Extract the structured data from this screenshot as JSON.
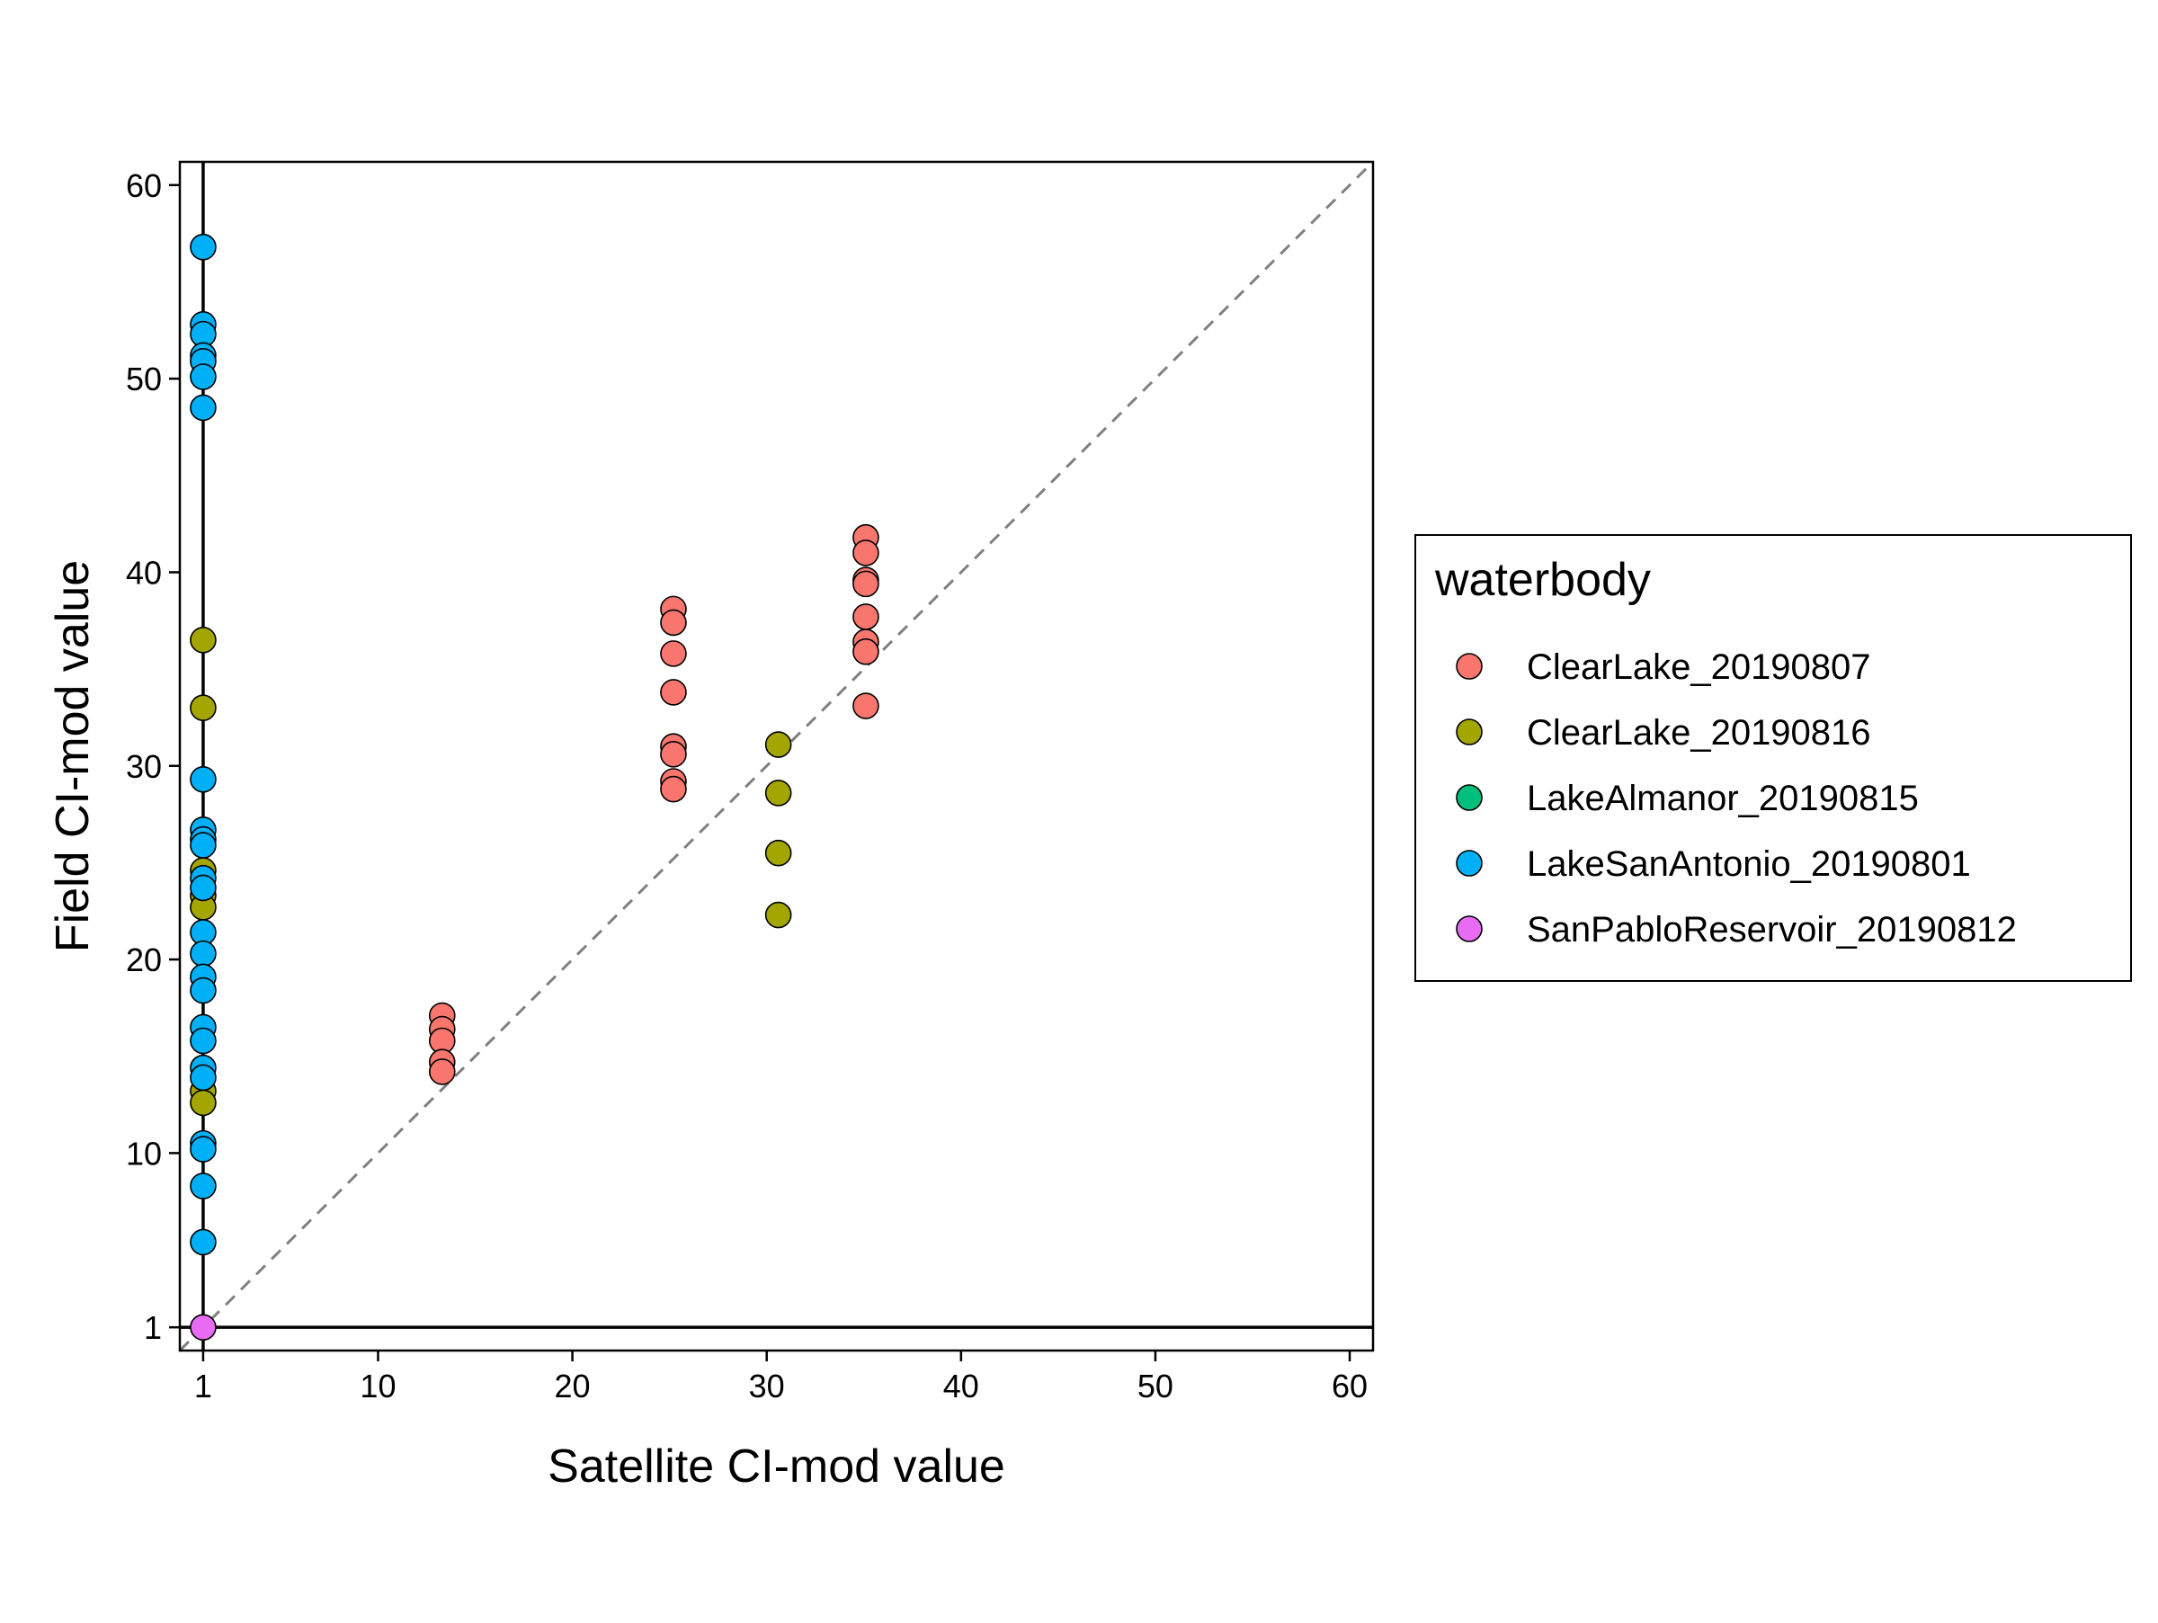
{
  "chart_data": {
    "type": "scatter",
    "title": "",
    "xlabel": "Satellite CI-mod value",
    "ylabel": "Field CI-mod value",
    "xlim": [
      -0.2,
      61.2
    ],
    "ylim": [
      -0.2,
      61.2
    ],
    "xticks": [
      1,
      10,
      20,
      30,
      40,
      50,
      60
    ],
    "yticks": [
      1,
      10,
      20,
      30,
      40,
      50,
      60
    ],
    "grid": false,
    "reference_lines": [
      {
        "type": "diagonal",
        "label": "1:1",
        "color": "#808080",
        "style": "dashed"
      },
      {
        "type": "vertical",
        "x": 1,
        "color": "#000000"
      },
      {
        "type": "horizontal",
        "y": 1,
        "color": "#000000"
      }
    ],
    "legend": {
      "title": "waterbody",
      "position": "right"
    },
    "series": [
      {
        "name": "ClearLake_20190807",
        "color": "#F8766D",
        "points": [
          [
            13.3,
            17.1
          ],
          [
            13.3,
            16.4
          ],
          [
            13.3,
            15.8
          ],
          [
            13.3,
            14.7
          ],
          [
            13.3,
            14.2
          ],
          [
            25.2,
            38.1
          ],
          [
            25.2,
            37.4
          ],
          [
            25.2,
            35.8
          ],
          [
            25.2,
            33.8
          ],
          [
            25.2,
            31.0
          ],
          [
            25.2,
            30.6
          ],
          [
            25.2,
            29.2
          ],
          [
            25.2,
            28.8
          ],
          [
            35.1,
            41.8
          ],
          [
            35.1,
            41.0
          ],
          [
            35.1,
            39.6
          ],
          [
            35.1,
            39.4
          ],
          [
            35.1,
            37.7
          ],
          [
            35.1,
            36.4
          ],
          [
            35.1,
            35.9
          ],
          [
            35.1,
            33.1
          ]
        ]
      },
      {
        "name": "ClearLake_20190816",
        "color": "#A3A500",
        "points": [
          [
            30.6,
            31.1
          ],
          [
            30.6,
            28.6
          ],
          [
            30.6,
            25.5
          ],
          [
            30.6,
            22.3
          ],
          [
            1,
            36.5
          ],
          [
            1,
            33.0
          ],
          [
            1,
            24.6
          ],
          [
            1,
            23.3
          ],
          [
            1,
            22.7
          ],
          [
            1,
            13.2
          ],
          [
            1,
            12.6
          ]
        ]
      },
      {
        "name": "LakeAlmanor_20190815",
        "color": "#00BF7D",
        "points": []
      },
      {
        "name": "LakeSanAntonio_20190801",
        "color": "#00B0F6",
        "points": [
          [
            1,
            56.8
          ],
          [
            1,
            52.8
          ],
          [
            1,
            52.3
          ],
          [
            1,
            51.2
          ],
          [
            1,
            50.9
          ],
          [
            1,
            50.1
          ],
          [
            1,
            48.5
          ],
          [
            1,
            29.3
          ],
          [
            1,
            26.7
          ],
          [
            1,
            26.2
          ],
          [
            1,
            25.9
          ],
          [
            1,
            24.2
          ],
          [
            1,
            23.7
          ],
          [
            1,
            21.4
          ],
          [
            1,
            20.3
          ],
          [
            1,
            19.1
          ],
          [
            1,
            18.4
          ],
          [
            1,
            16.5
          ],
          [
            1,
            15.8
          ],
          [
            1,
            14.4
          ],
          [
            1,
            13.9
          ],
          [
            1,
            10.5
          ],
          [
            1,
            10.2
          ],
          [
            1,
            8.3
          ],
          [
            1,
            5.4
          ]
        ]
      },
      {
        "name": "SanPabloReservoir_20190812",
        "color": "#E76BF3",
        "points": [
          [
            1,
            1
          ]
        ]
      }
    ]
  }
}
